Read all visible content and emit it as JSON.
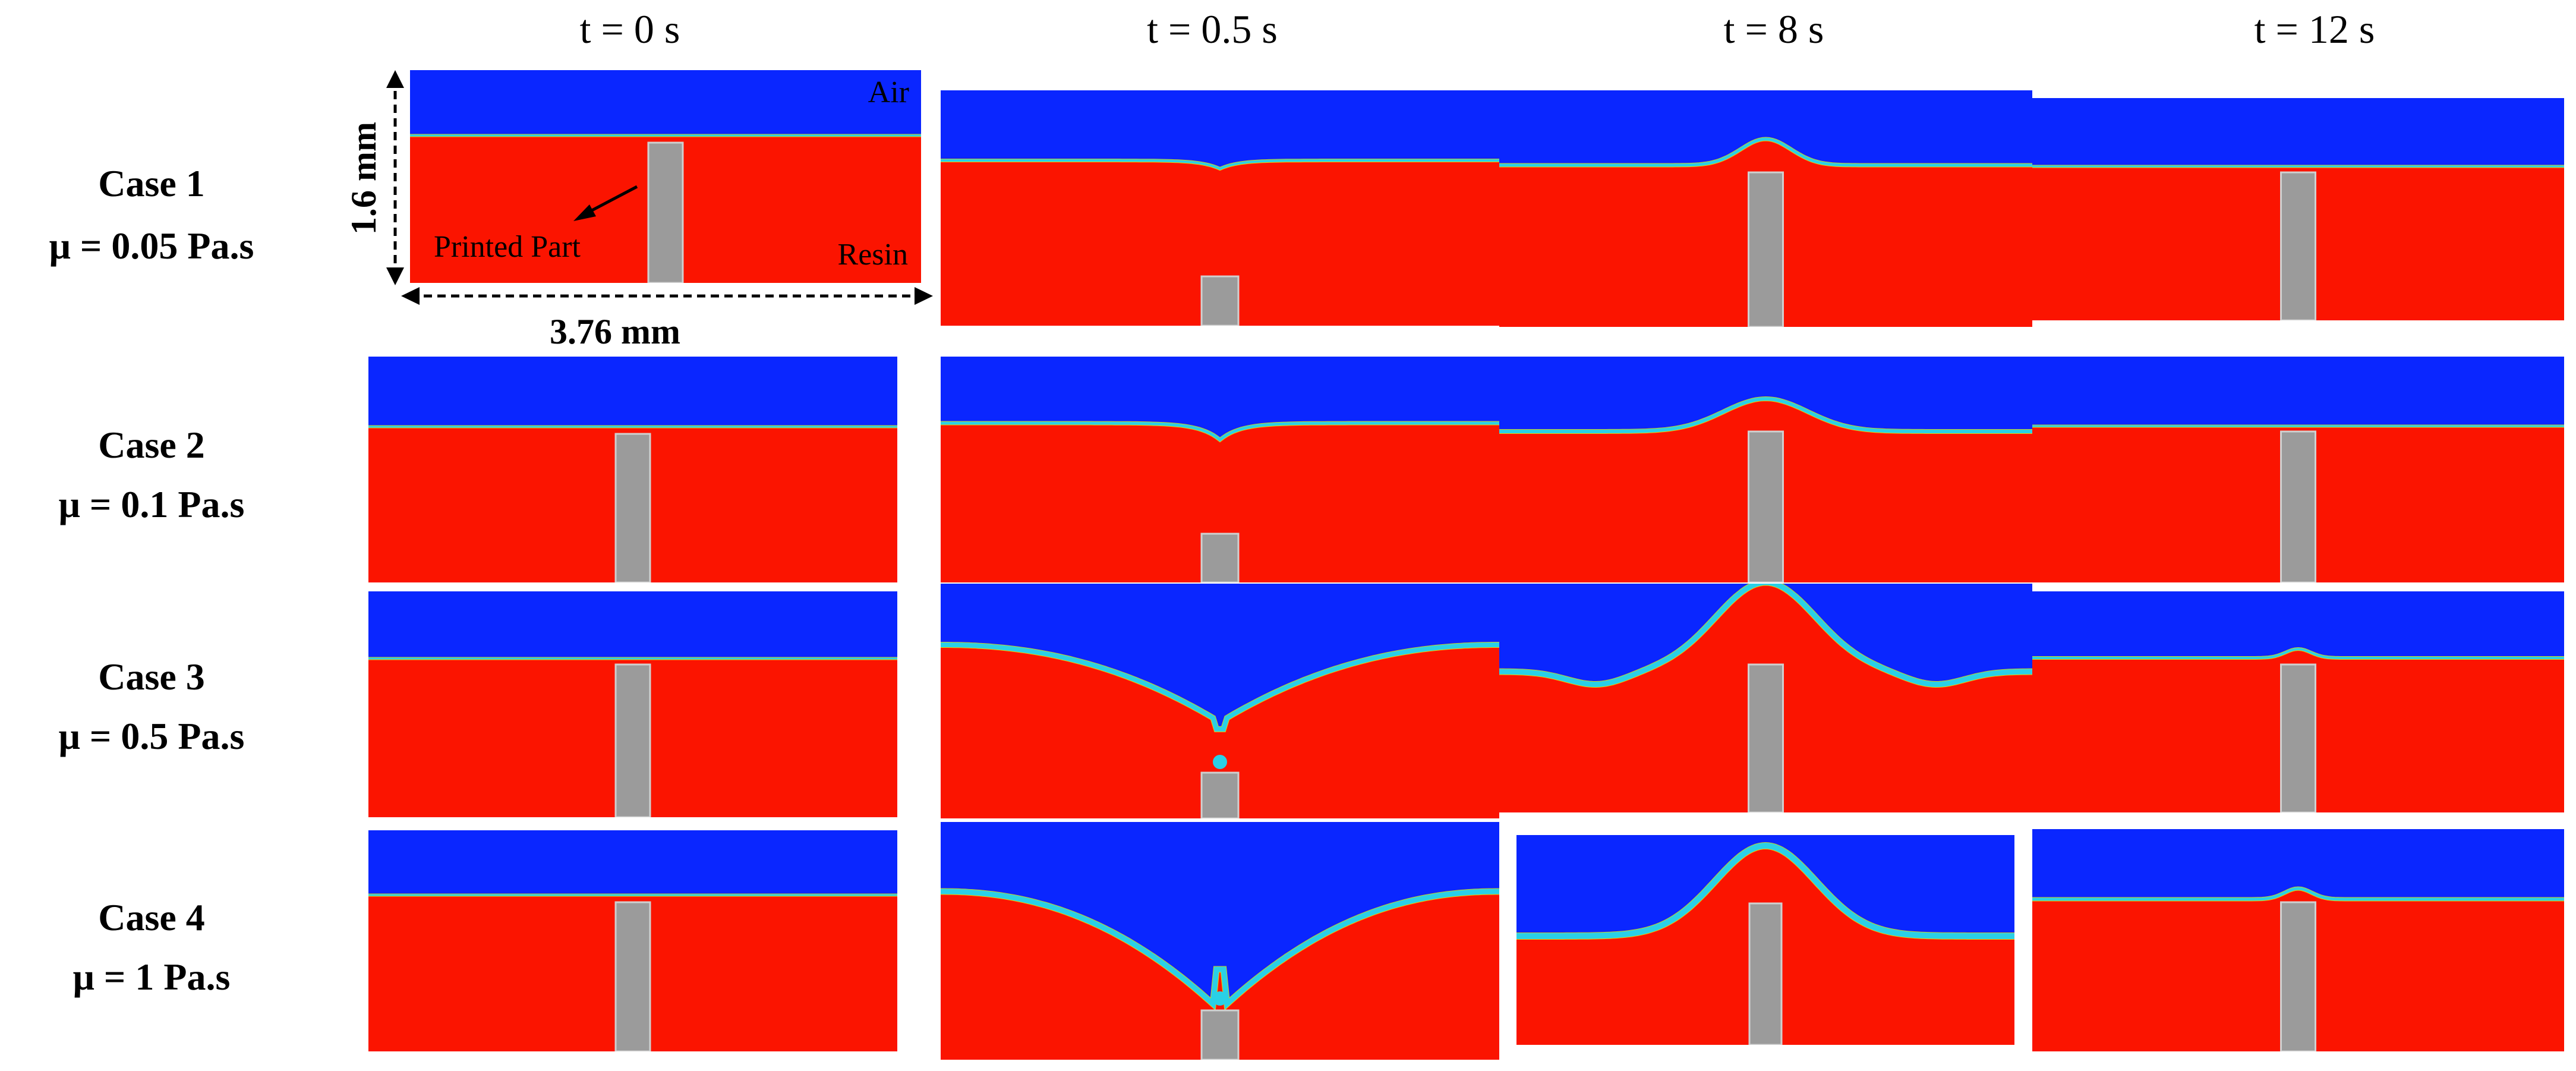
{
  "column_headers": [
    "t = 0 s",
    "t = 0.5 s",
    "t = 8 s",
    "t = 12 s"
  ],
  "row_labels": [
    {
      "case": "Case 1",
      "viscosity": "μ = 0.05 Pa.s"
    },
    {
      "case": "Case 2",
      "viscosity": "μ = 0.1 Pa.s"
    },
    {
      "case": "Case 3",
      "viscosity": "μ = 0.5 Pa.s"
    },
    {
      "case": "Case 4",
      "viscosity": "μ = 1 Pa.s"
    }
  ],
  "annotations": {
    "air": "Air",
    "resin": "Resin",
    "printed_part": "Printed Part",
    "height_dim": "1.6 mm",
    "width_dim": "3.76 mm"
  },
  "colors": {
    "air": "#0a26ff",
    "resin": "#fb1400",
    "part": "#9b9b9b",
    "interface": "#2ad0e6",
    "interface_inner": "#e8e600"
  }
}
